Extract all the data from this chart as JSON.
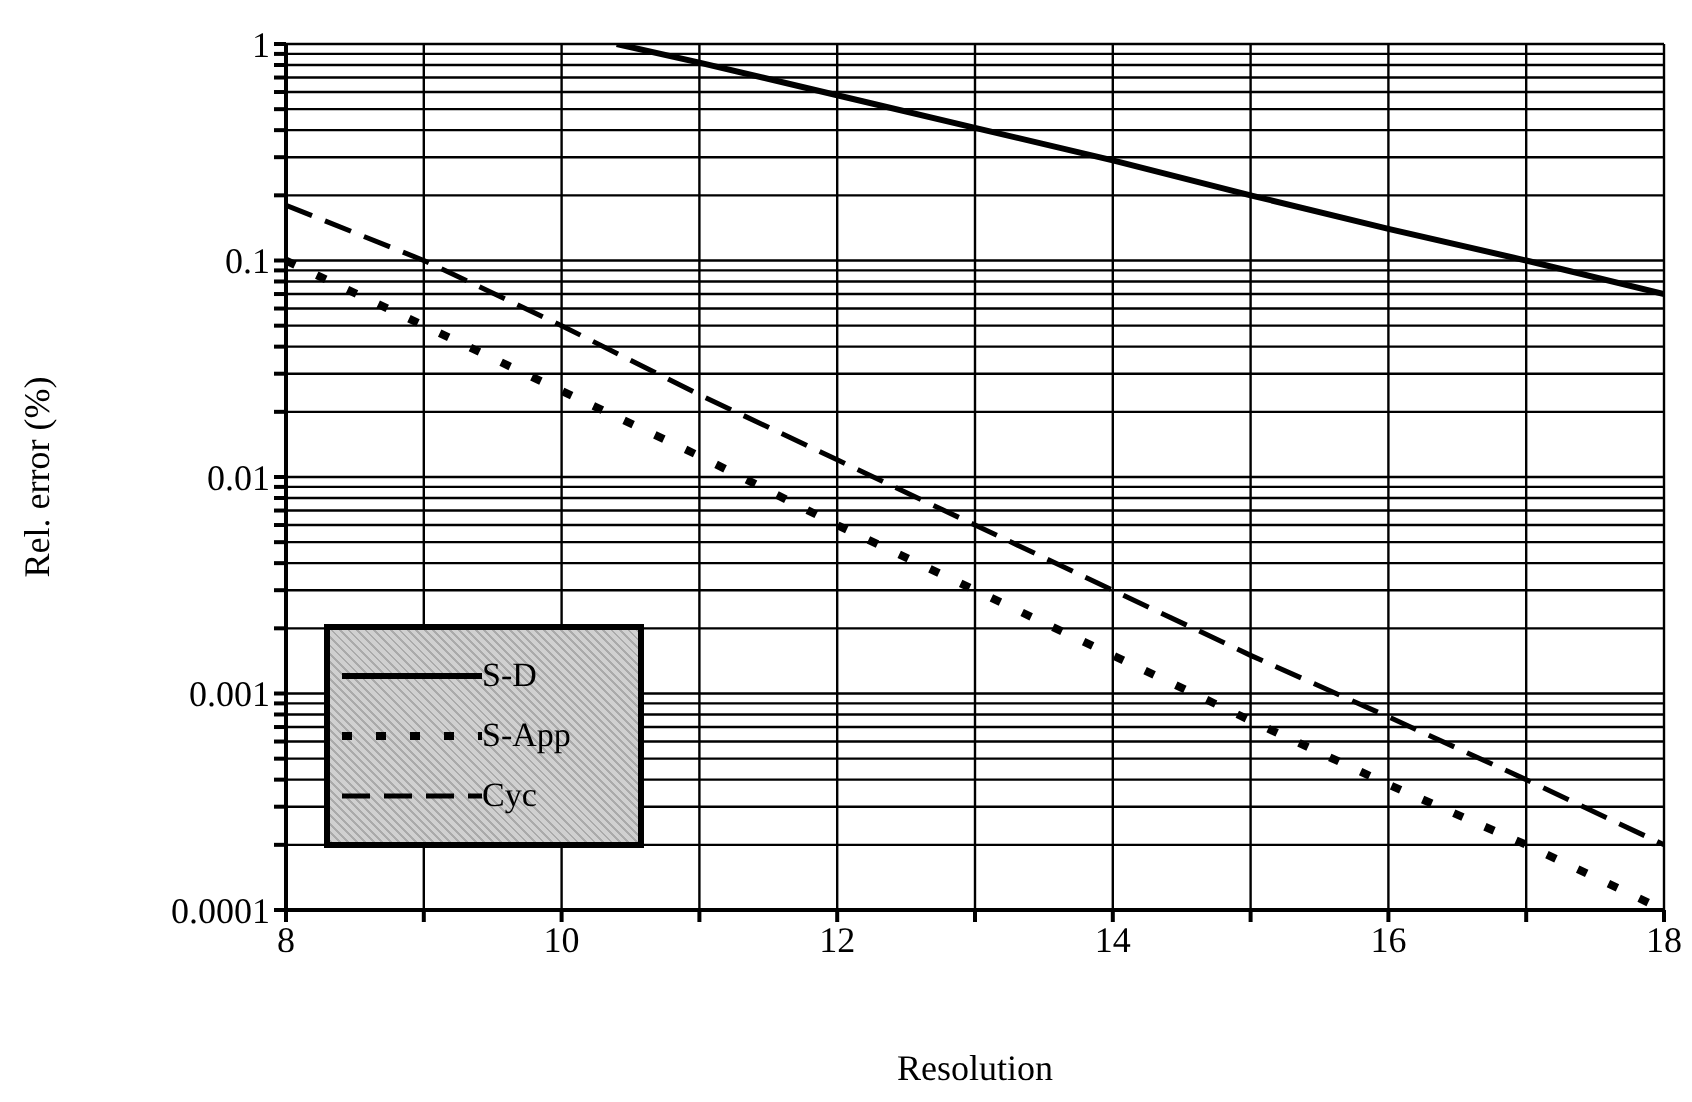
{
  "chart_data": {
    "type": "line",
    "xlabel": "Resolution",
    "ylabel": "Rel. error (%)",
    "xlim": [
      8,
      18
    ],
    "xticks": [
      8,
      {
        "value": 9,
        "label": null
      },
      10,
      {
        "value": 11,
        "label": null
      },
      12,
      {
        "value": 13,
        "label": null
      },
      14,
      {
        "value": 15,
        "label": null
      },
      16,
      {
        "value": 17,
        "label": null
      },
      18
    ],
    "ylim": [
      0.0001,
      1
    ],
    "yticks": [
      0.0001,
      {
        "value": 0.0002,
        "label": null
      },
      {
        "value": 0.0003,
        "label": null
      },
      {
        "value": 0.0004,
        "label": null
      },
      {
        "value": 0.0005,
        "label": null
      },
      {
        "value": 0.0006,
        "label": null
      },
      {
        "value": 0.0007,
        "label": null
      },
      {
        "value": 0.0008,
        "label": null
      },
      {
        "value": 0.0009,
        "label": null
      },
      0.001,
      {
        "value": 0.002,
        "label": null
      },
      {
        "value": 0.003,
        "label": null
      },
      {
        "value": 0.004,
        "label": null
      },
      {
        "value": 0.005,
        "label": null
      },
      {
        "value": 0.006,
        "label": null
      },
      {
        "value": 0.007,
        "label": null
      },
      {
        "value": 0.008,
        "label": null
      },
      {
        "value": 0.009,
        "label": null
      },
      0.01,
      {
        "value": 0.02,
        "label": null
      },
      {
        "value": 0.03,
        "label": null
      },
      {
        "value": 0.04,
        "label": null
      },
      {
        "value": 0.05,
        "label": null
      },
      {
        "value": 0.06,
        "label": null
      },
      {
        "value": 0.07,
        "label": null
      },
      {
        "value": 0.08,
        "label": null
      },
      {
        "value": 0.09,
        "label": null
      },
      0.1,
      {
        "value": 0.2,
        "label": null
      },
      {
        "value": 0.3,
        "label": null
      },
      {
        "value": 0.4,
        "label": null
      },
      {
        "value": 0.5,
        "label": null
      },
      {
        "value": 0.6,
        "label": null
      },
      {
        "value": 0.7,
        "label": null
      },
      {
        "value": 0.8,
        "label": null
      },
      {
        "value": 0.9,
        "label": null
      },
      1
    ],
    "log": "y",
    "grid": true,
    "legend": "bottom left",
    "marker": "none",
    "series": [
      {
        "name": "S-D",
        "color": "#000000",
        "line_style": "solid",
        "x": [
          10.4,
          11,
          12,
          13,
          14,
          15,
          16,
          17,
          18
        ],
        "values": [
          1,
          0.82,
          0.58,
          0.41,
          0.29,
          0.2,
          0.14,
          0.1,
          0.07
        ]
      },
      {
        "name": "S-App",
        "color": "#000000",
        "line_style": "dotted",
        "x": [
          8,
          9,
          10,
          11,
          12,
          13,
          14,
          15,
          16,
          17,
          18
        ],
        "values": [
          0.1,
          0.05,
          0.025,
          0.0125,
          0.006,
          0.003,
          0.0015,
          0.00075,
          0.00038,
          0.0002,
          0.0001
        ]
      },
      {
        "name": "Cyc",
        "color": "#000000",
        "line_style": "dashed",
        "x": [
          8,
          9,
          10,
          11,
          12,
          13,
          14,
          15,
          16,
          17,
          18
        ],
        "values": [
          0.18,
          0.1,
          0.05,
          0.024,
          0.012,
          0.006,
          0.003,
          0.0015,
          0.00078,
          0.0004,
          0.0002
        ]
      }
    ]
  }
}
